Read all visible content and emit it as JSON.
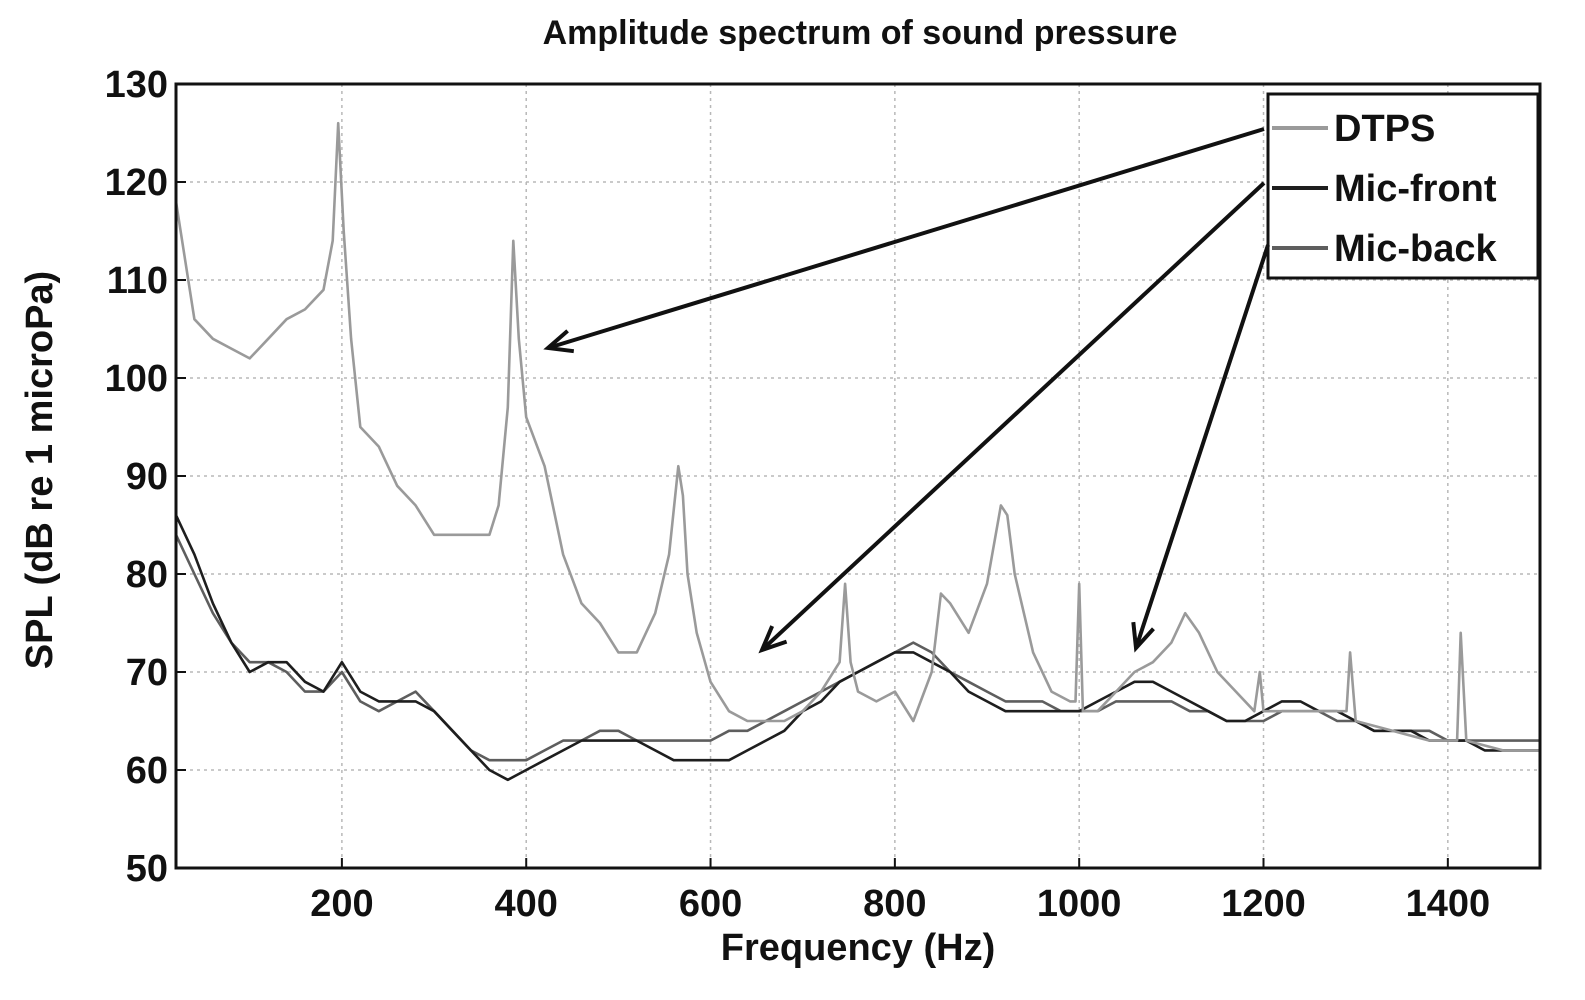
{
  "chart_data": {
    "type": "line",
    "title": "Amplitude spectrum of sound pressure",
    "xlabel": "Frequency (Hz)",
    "ylabel": "SPL (dB re 1 microPa)",
    "xlim": [
      20,
      1500
    ],
    "ylim": [
      50,
      130
    ],
    "xticks": [
      200,
      400,
      600,
      800,
      1000,
      1200,
      1400
    ],
    "yticks": [
      50,
      60,
      70,
      80,
      90,
      100,
      110,
      120,
      130
    ],
    "grid": true,
    "legend_position": "top-right",
    "series": [
      {
        "name": "DTPS",
        "color": "#9a9a9a",
        "x": [
          20,
          30,
          40,
          60,
          80,
          100,
          120,
          140,
          160,
          180,
          190,
          196,
          202,
          210,
          220,
          240,
          260,
          280,
          300,
          320,
          340,
          360,
          370,
          380,
          386,
          392,
          400,
          420,
          440,
          460,
          480,
          500,
          520,
          540,
          555,
          565,
          570,
          575,
          585,
          600,
          620,
          640,
          660,
          680,
          700,
          720,
          740,
          746,
          752,
          760,
          780,
          800,
          820,
          840,
          850,
          860,
          880,
          900,
          915,
          922,
          930,
          950,
          970,
          990,
          996,
          1000,
          1004,
          1020,
          1040,
          1060,
          1080,
          1100,
          1115,
          1130,
          1150,
          1170,
          1190,
          1196,
          1200,
          1220,
          1260,
          1290,
          1294,
          1300,
          1340,
          1380,
          1410,
          1414,
          1420,
          1460,
          1500
        ],
        "y": [
          118,
          112,
          106,
          104,
          103,
          102,
          104,
          106,
          107,
          109,
          114,
          126,
          115,
          104,
          95,
          93,
          89,
          87,
          84,
          84,
          84,
          84,
          87,
          97,
          114,
          104,
          96,
          91,
          82,
          77,
          75,
          72,
          72,
          76,
          82,
          91,
          88,
          80,
          74,
          69,
          66,
          65,
          65,
          65,
          66,
          68,
          71,
          79,
          71,
          68,
          67,
          68,
          65,
          70,
          78,
          77,
          74,
          79,
          87,
          86,
          80,
          72,
          68,
          67,
          67,
          79,
          66,
          66,
          68,
          70,
          71,
          73,
          76,
          74,
          70,
          68,
          66,
          70,
          66,
          66,
          66,
          66,
          72,
          65,
          64,
          63,
          63,
          74,
          63,
          62,
          62
        ]
      },
      {
        "name": "Mic-front",
        "color": "#1e1e1e",
        "x": [
          20,
          40,
          60,
          80,
          100,
          120,
          140,
          160,
          180,
          200,
          220,
          240,
          260,
          280,
          300,
          320,
          340,
          360,
          380,
          400,
          420,
          440,
          460,
          480,
          500,
          520,
          540,
          560,
          580,
          600,
          620,
          640,
          660,
          680,
          700,
          720,
          740,
          760,
          780,
          800,
          820,
          840,
          860,
          880,
          900,
          920,
          940,
          960,
          980,
          1000,
          1020,
          1040,
          1060,
          1080,
          1100,
          1120,
          1140,
          1160,
          1180,
          1200,
          1220,
          1240,
          1260,
          1280,
          1300,
          1320,
          1340,
          1360,
          1380,
          1400,
          1420,
          1440,
          1460,
          1480,
          1500
        ],
        "y": [
          86,
          82,
          77,
          73,
          70,
          71,
          71,
          69,
          68,
          71,
          68,
          67,
          67,
          67,
          66,
          64,
          62,
          60,
          59,
          60,
          61,
          62,
          63,
          63,
          63,
          63,
          62,
          61,
          61,
          61,
          61,
          62,
          63,
          64,
          66,
          67,
          69,
          70,
          71,
          72,
          72,
          71,
          70,
          68,
          67,
          66,
          66,
          66,
          66,
          66,
          67,
          68,
          69,
          69,
          68,
          67,
          66,
          65,
          65,
          66,
          67,
          67,
          66,
          66,
          65,
          64,
          64,
          64,
          63,
          63,
          63,
          62,
          62,
          62,
          62
        ]
      },
      {
        "name": "Mic-back",
        "color": "#5e5e5e",
        "x": [
          20,
          40,
          60,
          80,
          100,
          120,
          140,
          160,
          180,
          200,
          220,
          240,
          260,
          280,
          300,
          320,
          340,
          360,
          380,
          400,
          420,
          440,
          460,
          480,
          500,
          520,
          540,
          560,
          580,
          600,
          620,
          640,
          660,
          680,
          700,
          720,
          740,
          760,
          780,
          800,
          820,
          840,
          860,
          880,
          900,
          920,
          940,
          960,
          980,
          1000,
          1020,
          1040,
          1060,
          1080,
          1100,
          1120,
          1140,
          1160,
          1180,
          1200,
          1220,
          1240,
          1260,
          1280,
          1300,
          1320,
          1340,
          1360,
          1380,
          1400,
          1420,
          1440,
          1460,
          1480,
          1500
        ],
        "y": [
          84,
          80,
          76,
          73,
          71,
          71,
          70,
          68,
          68,
          70,
          67,
          66,
          67,
          68,
          66,
          64,
          62,
          61,
          61,
          61,
          62,
          63,
          63,
          64,
          64,
          63,
          63,
          63,
          63,
          63,
          64,
          64,
          65,
          66,
          67,
          68,
          69,
          70,
          71,
          72,
          73,
          72,
          70,
          69,
          68,
          67,
          67,
          67,
          66,
          66,
          66,
          67,
          67,
          67,
          67,
          66,
          66,
          65,
          65,
          65,
          66,
          66,
          66,
          65,
          65,
          64,
          64,
          64,
          64,
          63,
          63,
          63,
          63,
          63,
          63
        ]
      }
    ]
  }
}
